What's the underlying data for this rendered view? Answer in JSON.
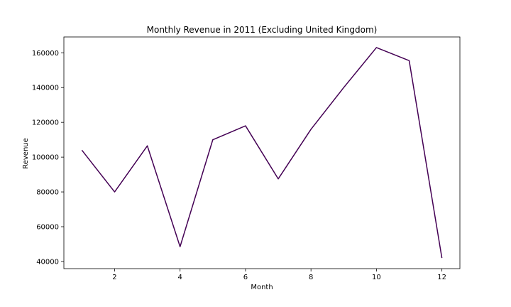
{
  "chart_data": {
    "type": "line",
    "title": "Monthly Revenue in 2011 (Excluding United Kingdom)",
    "xlabel": "Month",
    "ylabel": "Revenue",
    "x": [
      1,
      2,
      3,
      4,
      5,
      6,
      7,
      8,
      9,
      10,
      11,
      12
    ],
    "series": [
      {
        "values": [
          104000,
          80000,
          106500,
          48500,
          110000,
          118000,
          87500,
          116000,
          140000,
          163000,
          155500,
          42000
        ],
        "color": "#440154"
      }
    ],
    "xlim": [
      0.45,
      12.55
    ],
    "ylim": [
      35900,
      169100
    ],
    "xticks": [
      2,
      4,
      6,
      8,
      10,
      12
    ],
    "yticks": [
      40000,
      60000,
      80000,
      100000,
      120000,
      140000,
      160000
    ],
    "grid": false,
    "legend": "none"
  }
}
